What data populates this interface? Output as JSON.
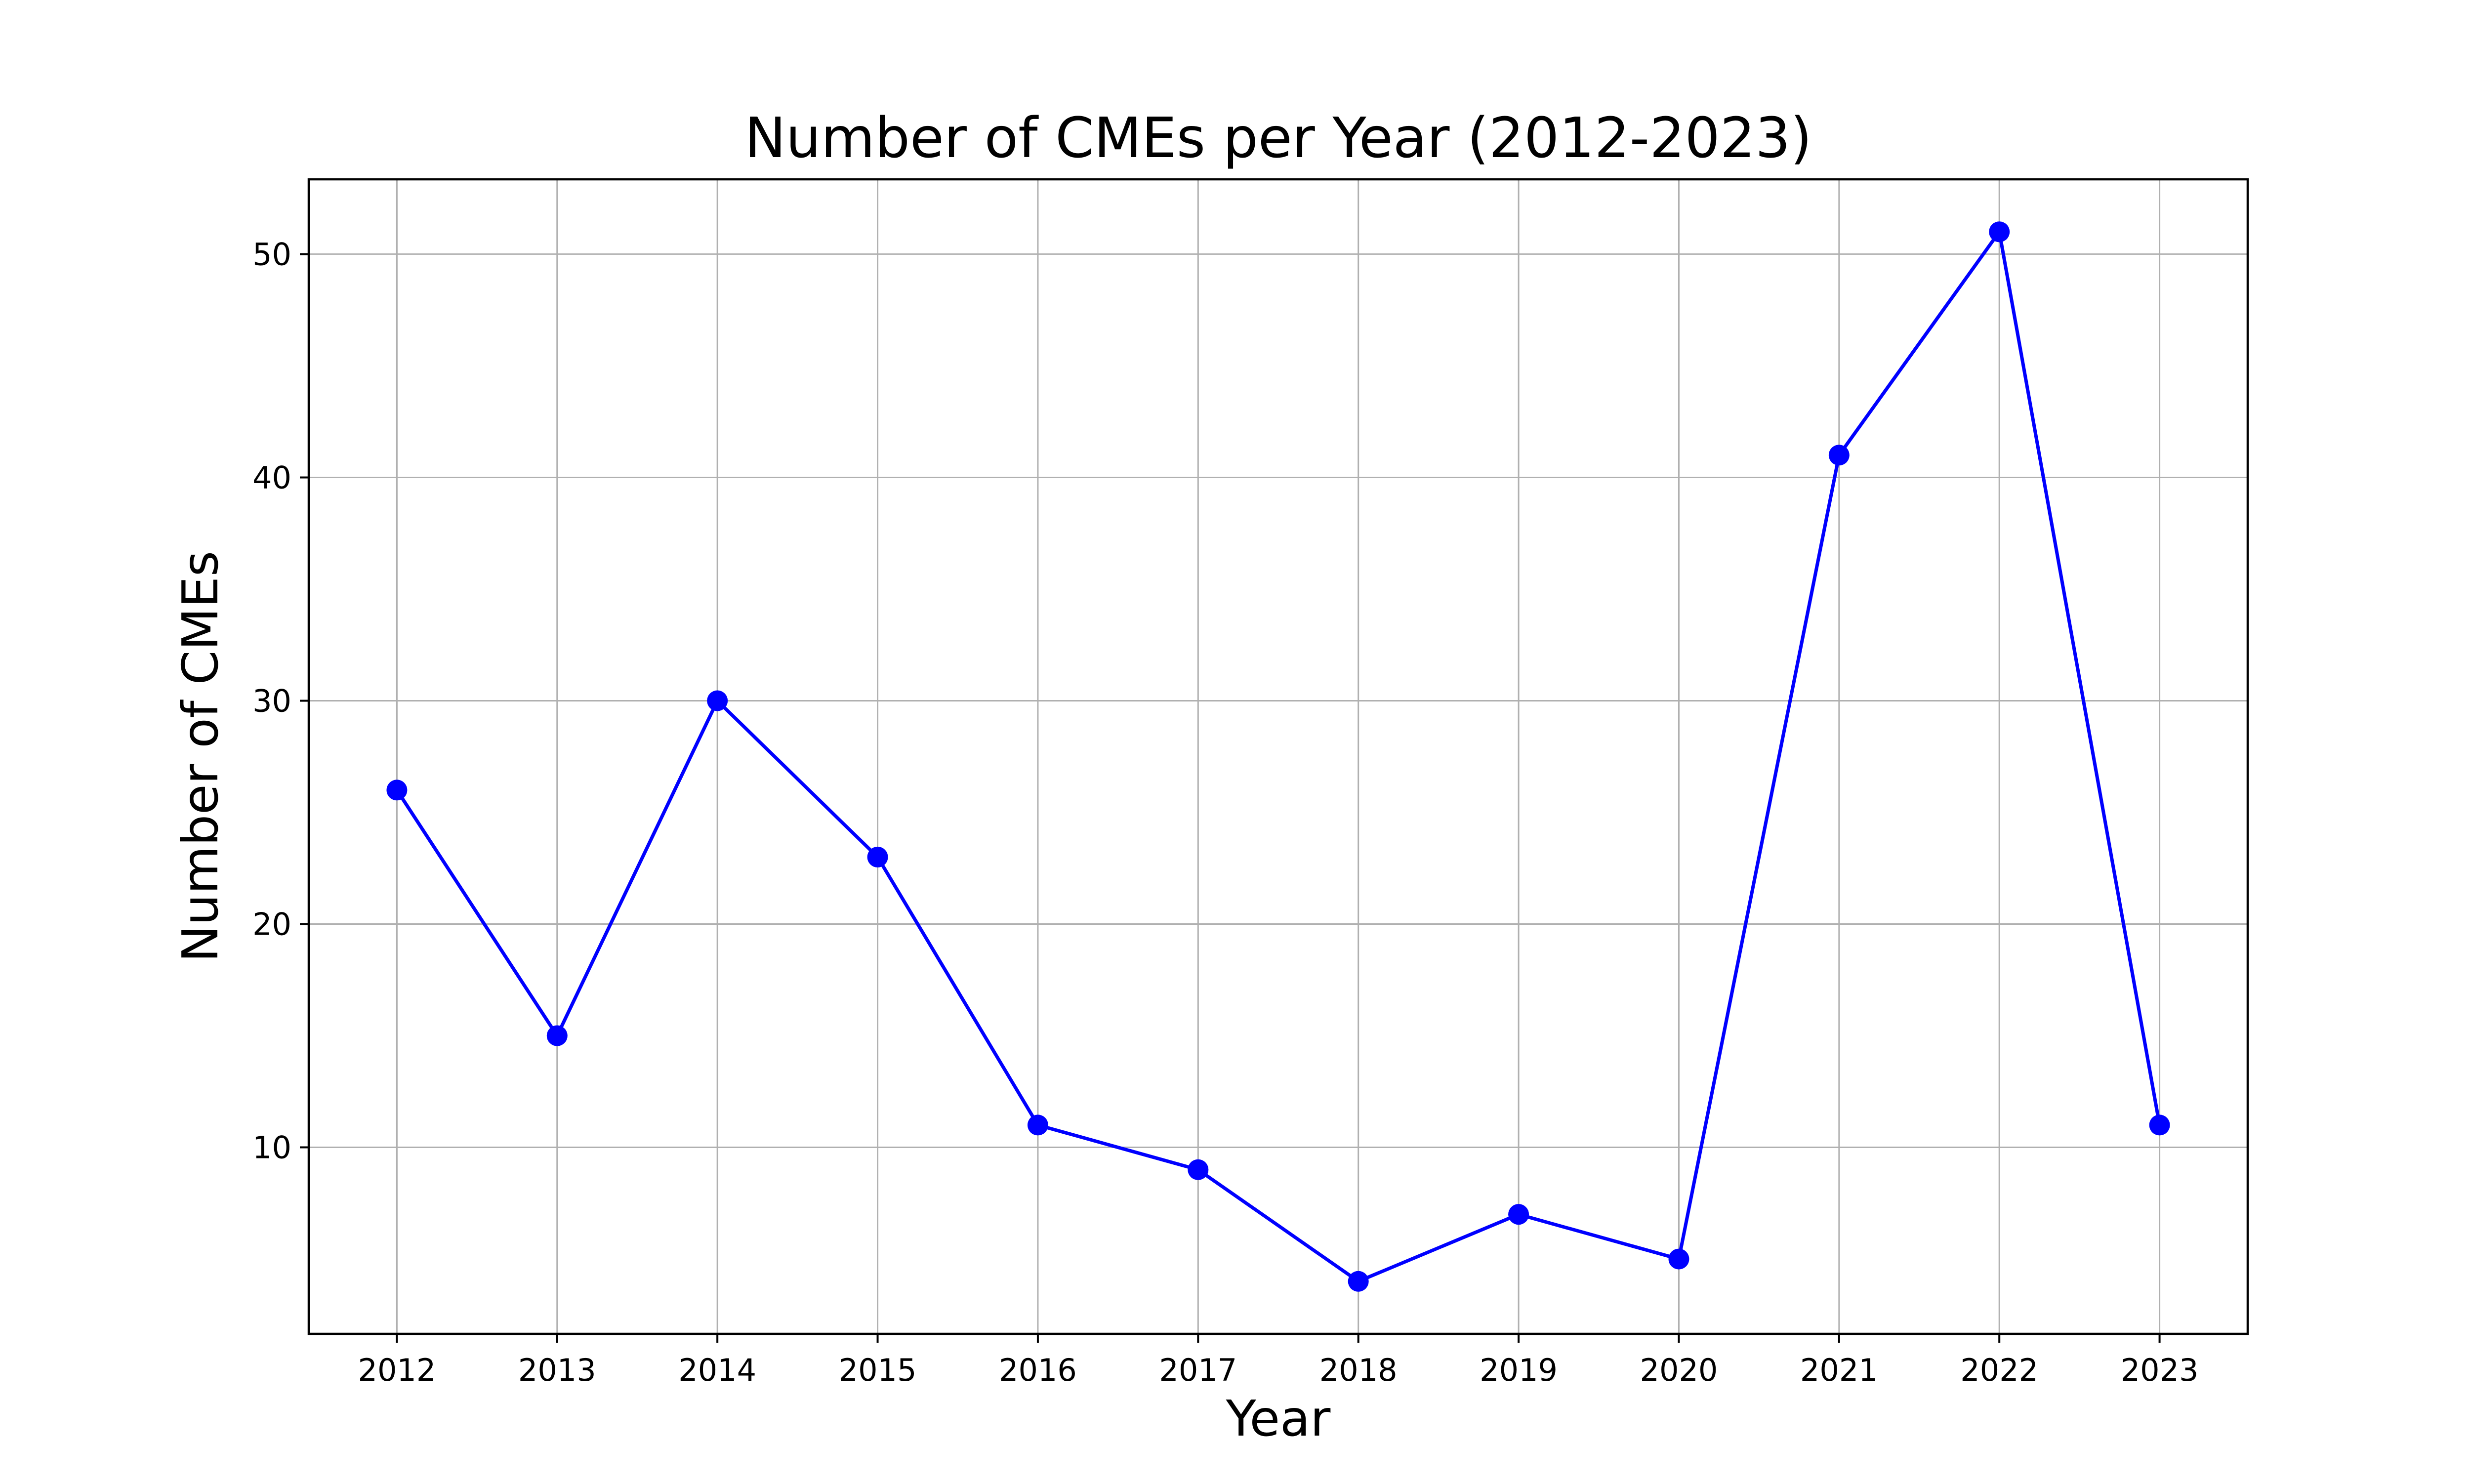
{
  "chart_data": {
    "type": "line",
    "title": "Number of CMEs per Year (2012-2023)",
    "xlabel": "Year",
    "ylabel": "Number of CMEs",
    "x": [
      "2012",
      "2013",
      "2014",
      "2015",
      "2016",
      "2017",
      "2018",
      "2019",
      "2020",
      "2021",
      "2022",
      "2023"
    ],
    "series": [
      {
        "values": [
          26,
          15,
          30,
          23,
          11,
          9,
          4,
          7,
          5,
          41,
          51,
          11
        ],
        "color": "#0000ff",
        "marker": "circle"
      }
    ],
    "ylim": [
      1.65,
      53.35
    ],
    "yticks": [
      10,
      20,
      30,
      40,
      50
    ],
    "grid": true,
    "grid_color": "#b0b0b0",
    "axes_color": "#000000"
  }
}
